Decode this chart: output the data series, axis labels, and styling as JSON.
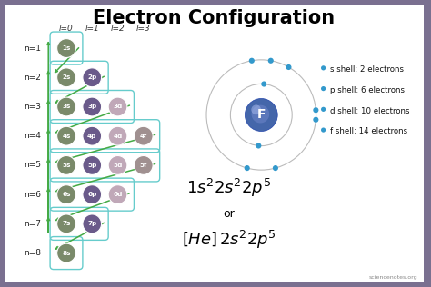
{
  "title": "Electron Configuration",
  "title_fontsize": 15,
  "title_fontweight": "bold",
  "bg_color": "#7a7090",
  "inner_bg_color": "#ffffff",
  "orbitals": [
    {
      "label": "1s",
      "row": 0,
      "col": 0,
      "color": "#7a8a6a"
    },
    {
      "label": "2s",
      "row": 1,
      "col": 0,
      "color": "#7a8a6a"
    },
    {
      "label": "2p",
      "row": 1,
      "col": 1,
      "color": "#6a5a8a"
    },
    {
      "label": "3s",
      "row": 2,
      "col": 0,
      "color": "#7a8a6a"
    },
    {
      "label": "3p",
      "row": 2,
      "col": 1,
      "color": "#6a5a8a"
    },
    {
      "label": "3d",
      "row": 2,
      "col": 2,
      "color": "#c0a8b8"
    },
    {
      "label": "4s",
      "row": 3,
      "col": 0,
      "color": "#7a8a6a"
    },
    {
      "label": "4p",
      "row": 3,
      "col": 1,
      "color": "#6a5a8a"
    },
    {
      "label": "4d",
      "row": 3,
      "col": 2,
      "color": "#c0a8b8"
    },
    {
      "label": "4f",
      "row": 3,
      "col": 3,
      "color": "#a09090"
    },
    {
      "label": "5s",
      "row": 4,
      "col": 0,
      "color": "#7a8a6a"
    },
    {
      "label": "5p",
      "row": 4,
      "col": 1,
      "color": "#6a5a8a"
    },
    {
      "label": "5d",
      "row": 4,
      "col": 2,
      "color": "#c0a8b8"
    },
    {
      "label": "5f",
      "row": 4,
      "col": 3,
      "color": "#a09090"
    },
    {
      "label": "6s",
      "row": 5,
      "col": 0,
      "color": "#7a8a6a"
    },
    {
      "label": "6p",
      "row": 5,
      "col": 1,
      "color": "#6a5a8a"
    },
    {
      "label": "6d",
      "row": 5,
      "col": 2,
      "color": "#c0a8b8"
    },
    {
      "label": "7s",
      "row": 6,
      "col": 0,
      "color": "#7a8a6a"
    },
    {
      "label": "7p",
      "row": 6,
      "col": 1,
      "color": "#6a5a8a"
    },
    {
      "label": "8s",
      "row": 7,
      "col": 0,
      "color": "#7a8a6a"
    }
  ],
  "n_labels": [
    "n=1",
    "n=2",
    "n=3",
    "n=4",
    "n=5",
    "n=6",
    "n=7",
    "n=8"
  ],
  "l_labels": [
    "l=0",
    "l=1",
    "l=2",
    "l=3"
  ],
  "shell_info": [
    "s shell: 2 electrons",
    "p shell: 6 electrons",
    "d shell: 10 electrons",
    "f shell: 14 electrons"
  ],
  "formula1": "$1s^22s^22p^5$",
  "formula2": "or",
  "formula3": "$[He]\\, 2s^22p^5$",
  "watermark": "sciencenotes.org",
  "atom_label": "F",
  "nucleus_color": "#4466aa",
  "electron_color": "#3399cc",
  "orbit_color": "#bbbbbb",
  "arrow_color": "#44aa44",
  "bracket_color": "#66cccc"
}
